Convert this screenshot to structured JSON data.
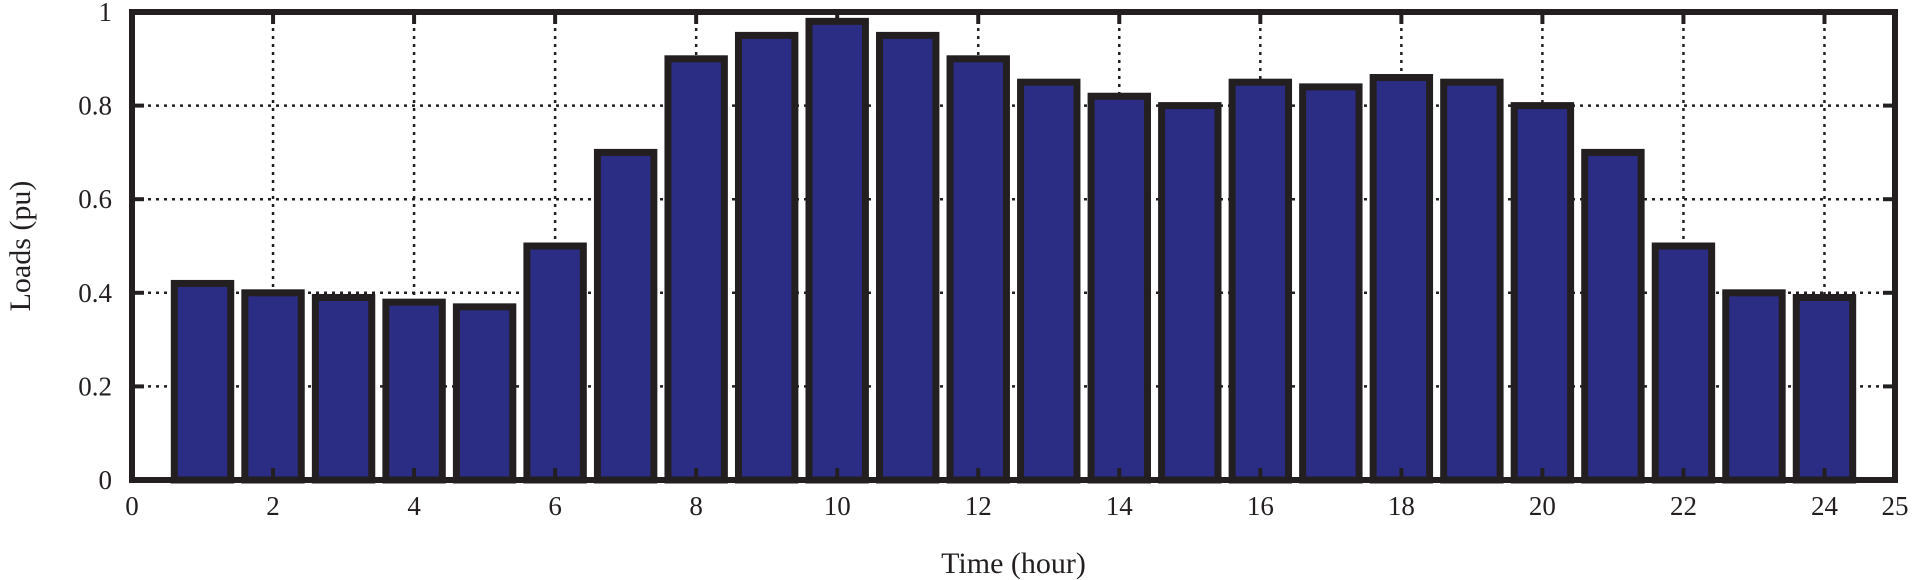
{
  "chart_data": {
    "type": "bar",
    "title": "",
    "xlabel": "Time (hour)",
    "ylabel": "Loads (pu)",
    "xlim": [
      0,
      25
    ],
    "ylim": [
      0,
      1
    ],
    "x_ticks": [
      0,
      2,
      4,
      6,
      8,
      10,
      12,
      14,
      16,
      18,
      20,
      22,
      24,
      25
    ],
    "x_tick_labels": [
      "0",
      "2",
      "4",
      "6",
      "8",
      "10",
      "12",
      "14",
      "16",
      "18",
      "20",
      "22",
      "24",
      "25"
    ],
    "y_ticks": [
      0,
      0.2,
      0.4,
      0.6,
      0.8,
      1
    ],
    "y_tick_labels": [
      "0",
      "0.2",
      "0.4",
      "0.6",
      "0.8",
      "1"
    ],
    "grid": true,
    "legend": "none",
    "bar_color": "#2b2d84",
    "edge_color": "#231f20",
    "categories": [
      1,
      2,
      3,
      4,
      5,
      6,
      7,
      8,
      9,
      10,
      11,
      12,
      13,
      14,
      15,
      16,
      17,
      18,
      19,
      20,
      21,
      22,
      23,
      24
    ],
    "values": [
      0.42,
      0.4,
      0.39,
      0.38,
      0.37,
      0.5,
      0.7,
      0.9,
      0.95,
      0.98,
      0.95,
      0.9,
      0.85,
      0.82,
      0.8,
      0.85,
      0.84,
      0.86,
      0.85,
      0.8,
      0.7,
      0.5,
      0.4,
      0.39
    ]
  }
}
